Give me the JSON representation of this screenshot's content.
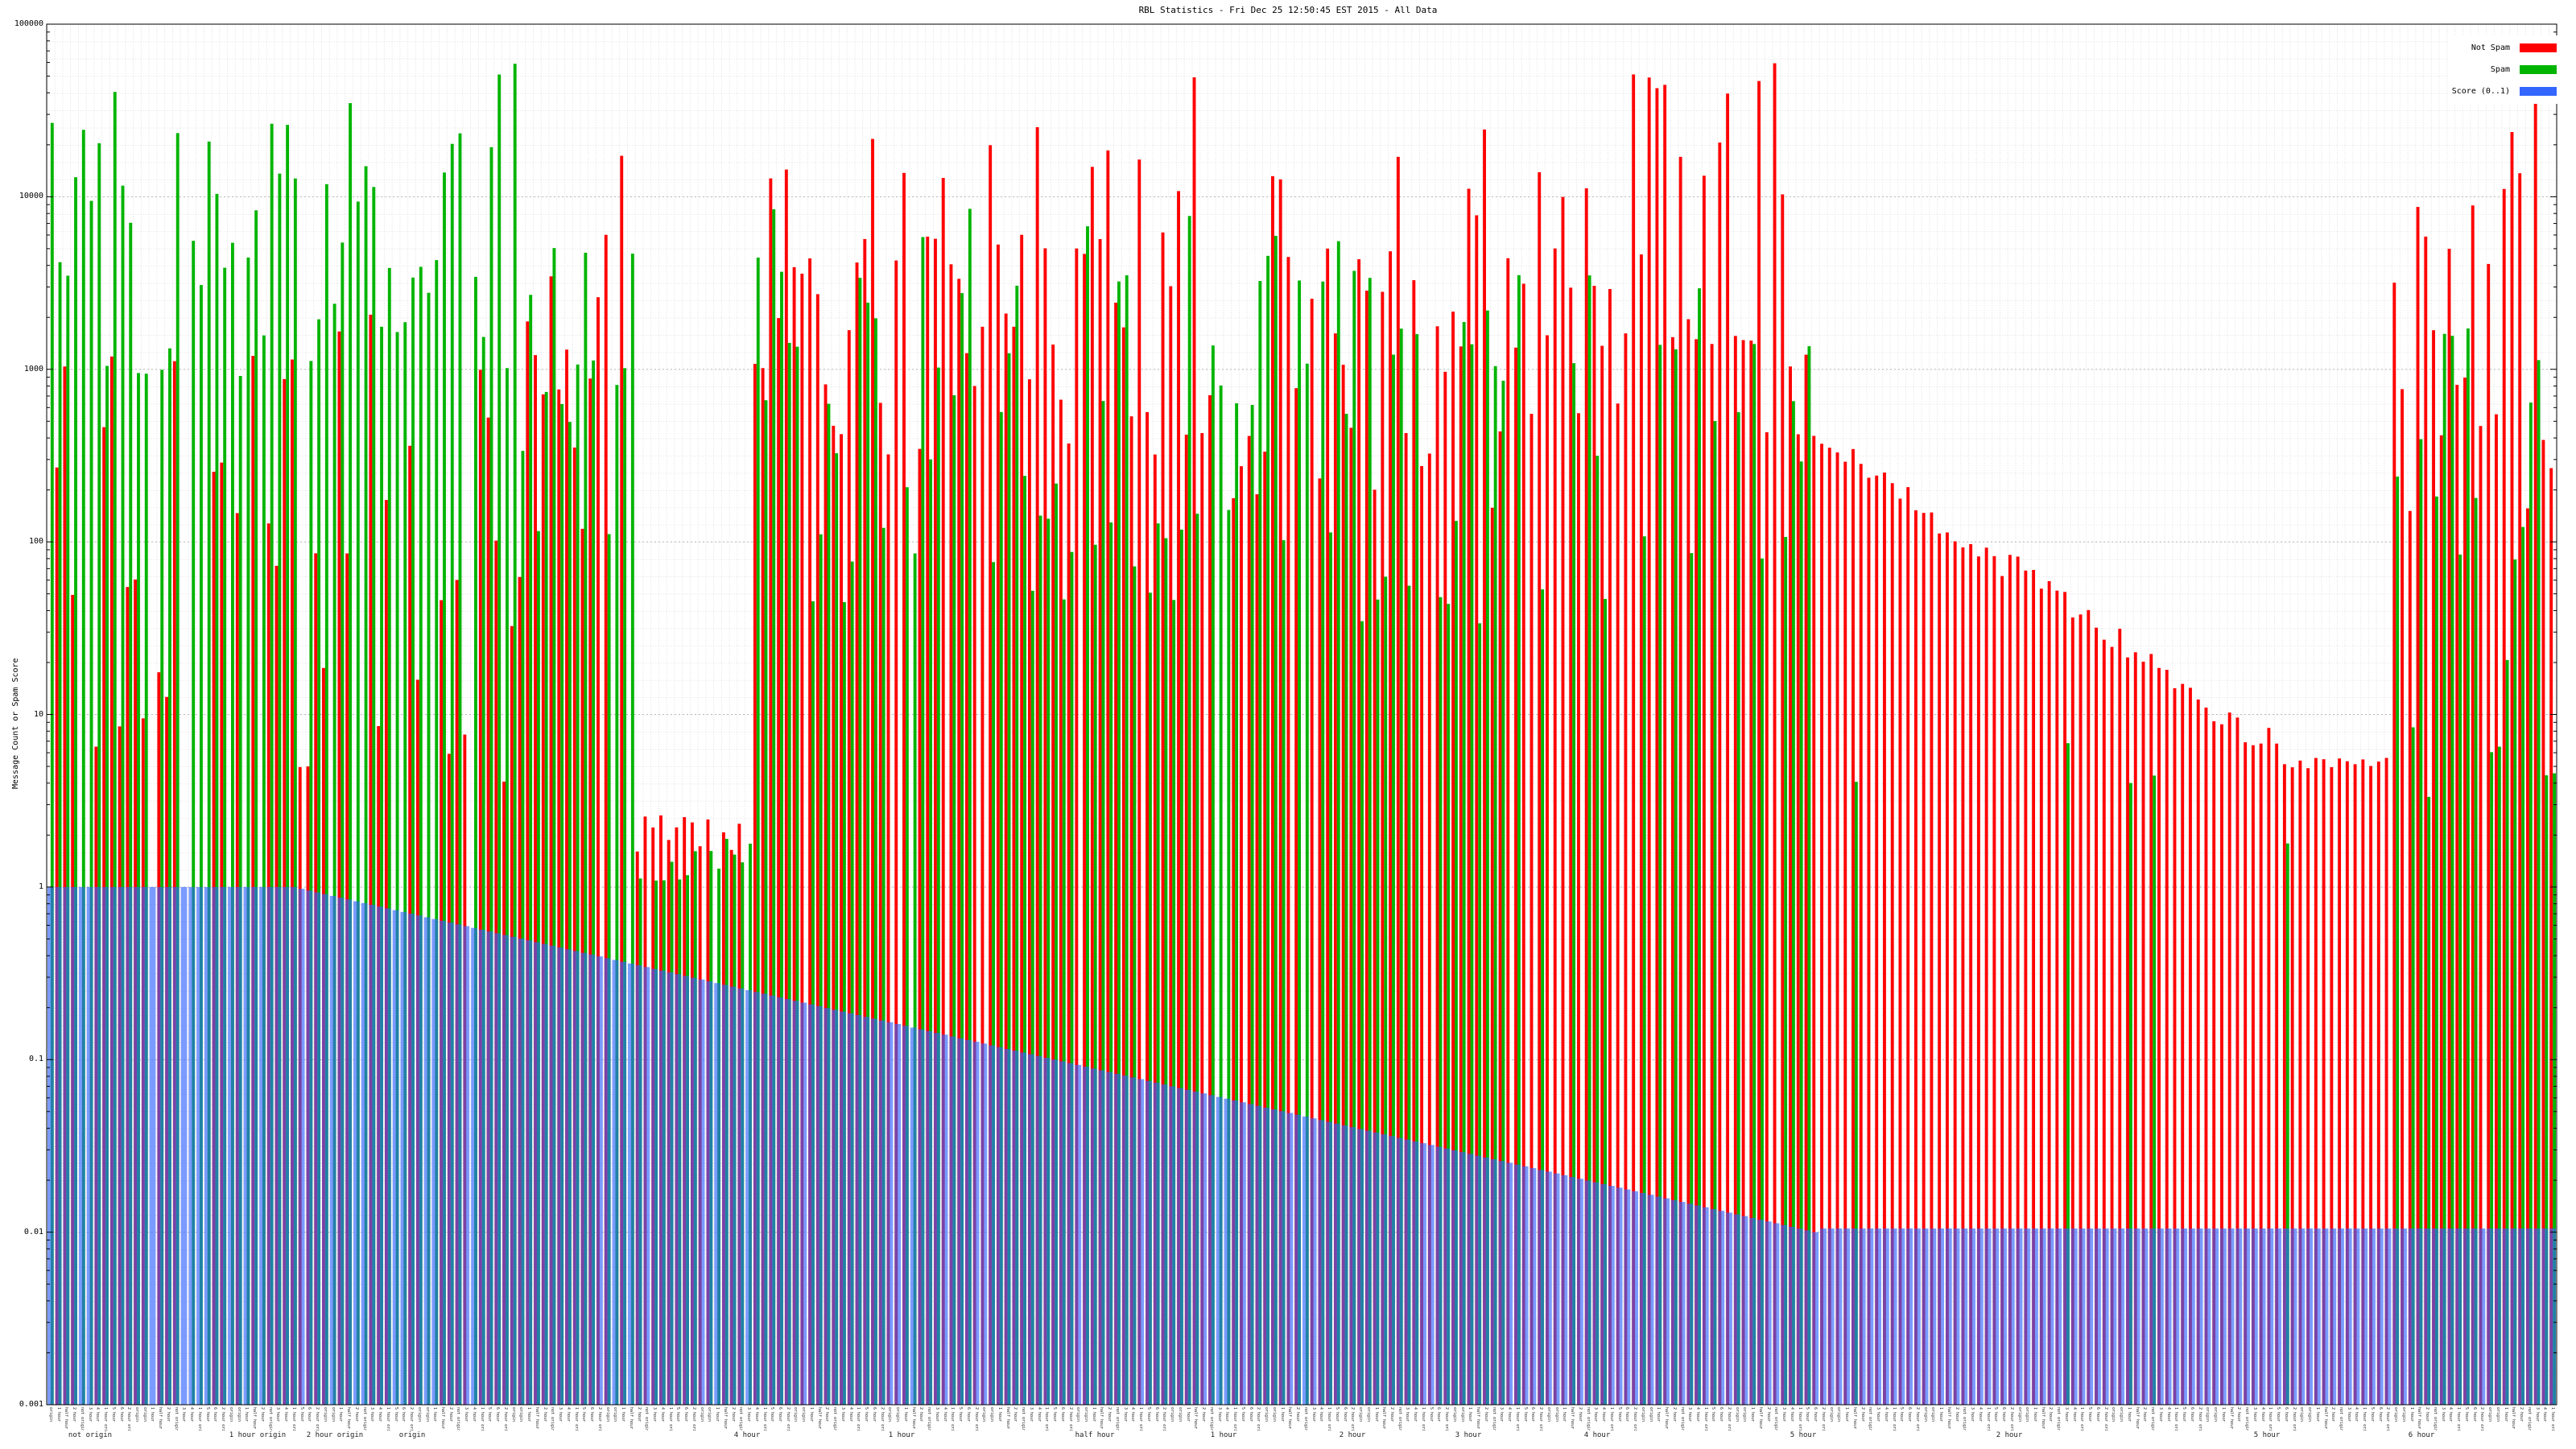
{
  "title": "RBL Statistics - Fri Dec 25 12:50:45 EST 2015 - All Data",
  "y_axis": {
    "label": "Message Count or Spam Score",
    "ticks": [
      "100000",
      "10000",
      "1000",
      "100",
      "10",
      "1",
      "0.1",
      "0.01",
      "0.001"
    ],
    "min": 0.001,
    "max": 100000,
    "scale": "log"
  },
  "x_axis": {
    "label_tokens": [
      "origin",
      "1 hour",
      "half hour",
      "2 hour",
      "not origin",
      "3 hour",
      "4 hour",
      "1 hour origin",
      "5 hour",
      "6 hour",
      "2 hour origin",
      "origin"
    ],
    "group_labels": [
      {
        "x": 0.035,
        "text": "not origin"
      },
      {
        "x": 0.1,
        "text": "1 hour origin"
      },
      {
        "x": 0.13,
        "text": "2 hour origin"
      },
      {
        "x": 0.16,
        "text": "origin"
      },
      {
        "x": 0.29,
        "text": "4 hour"
      },
      {
        "x": 0.35,
        "text": "1 hour"
      },
      {
        "x": 0.425,
        "text": "half hour"
      },
      {
        "x": 0.475,
        "text": "1 hour"
      },
      {
        "x": 0.525,
        "text": "2 hour"
      },
      {
        "x": 0.57,
        "text": "3 hour"
      },
      {
        "x": 0.62,
        "text": "4 hour"
      },
      {
        "x": 0.7,
        "text": "5 hour"
      },
      {
        "x": 0.78,
        "text": "2 hour"
      },
      {
        "x": 0.88,
        "text": "5 hour"
      },
      {
        "x": 0.94,
        "text": "6 hour"
      }
    ]
  },
  "legend": [
    {
      "label": "Not Spam",
      "color": "#ff0000"
    },
    {
      "label": "Spam",
      "color": "#00b400"
    },
    {
      "label": "Score (0..1)",
      "color": "#3366ff"
    }
  ],
  "chart_data": {
    "type": "bar",
    "scale": "log",
    "title": "RBL Statistics - Fri Dec 25 12:50:45 EST 2015 - All Data",
    "xlabel": "",
    "ylabel": "Message Count or Spam Score",
    "ylim": [
      0.001,
      100000
    ],
    "grid": true,
    "legend_position": "top-right",
    "n": 320,
    "ymax": 100000,
    "ymin": 0.001,
    "series": [
      {
        "name": "Not Spam",
        "color": "#ff0000",
        "segments": [
          {
            "n": 60,
            "p": 0.7,
            "lo": 4,
            "hi": 2500,
            "mode": "rand"
          },
          {
            "n": 15,
            "p": 0.9,
            "lo": 60,
            "hi": 18000,
            "mode": "rand"
          },
          {
            "n": 15,
            "p": 0.9,
            "lo": 1.6,
            "hi": 2.6,
            "mode": "rand"
          },
          {
            "n": 58,
            "p": 0.95,
            "lo": 300,
            "hi": 50000,
            "mode": "rand"
          },
          {
            "n": 38,
            "p": 0.95,
            "lo": 150,
            "hi": 25000,
            "mode": "rand"
          },
          {
            "n": 39,
            "p": 1.0,
            "lo": 400,
            "hi": 65000,
            "mode": "rand"
          },
          {
            "n": 61,
            "p": 1.0,
            "lo": 6,
            "hi": 420,
            "mode": "fall",
            "j": 0.25
          },
          {
            "n": 13,
            "p": 1.0,
            "lo": 4.5,
            "hi": 6,
            "mode": "rand"
          },
          {
            "n": 21,
            "p": 0.95,
            "lo": 150,
            "hi": 45000,
            "mode": "rand"
          }
        ]
      },
      {
        "name": "Spam",
        "color": "#00b400",
        "segments": [
          {
            "n": 60,
            "p": 0.95,
            "lo": 900,
            "hi": 60000,
            "mode": "rand"
          },
          {
            "n": 15,
            "p": 0.9,
            "lo": 80,
            "hi": 6000,
            "mode": "rand"
          },
          {
            "n": 15,
            "p": 0.75,
            "lo": 1,
            "hi": 2,
            "mode": "rand"
          },
          {
            "n": 58,
            "p": 0.9,
            "lo": 40,
            "hi": 9000,
            "mode": "rand"
          },
          {
            "n": 38,
            "p": 0.9,
            "lo": 30,
            "hi": 6000,
            "mode": "rand"
          },
          {
            "n": 39,
            "p": 0.65,
            "lo": 20,
            "hi": 4000,
            "mode": "rand"
          },
          {
            "n": 61,
            "p": 0.12,
            "lo": 1,
            "hi": 8,
            "mode": "rand"
          },
          {
            "n": 13,
            "p": 0.15,
            "lo": 1,
            "hi": 3,
            "mode": "rand"
          },
          {
            "n": 21,
            "p": 0.8,
            "lo": 2,
            "hi": 2500,
            "mode": "rand"
          }
        ]
      },
      {
        "name": "Score (0..1)",
        "color": "#3366ff",
        "opacity": 0.65,
        "segments": [
          {
            "n": 31,
            "p": 1.0,
            "lo": 1,
            "hi": 1,
            "mode": "flat"
          },
          {
            "n": 195,
            "p": 1.0,
            "lo": 0.01,
            "hi": 1,
            "mode": "fall"
          },
          {
            "n": 94,
            "p": 1.0,
            "lo": 0.0105,
            "hi": 0.0105,
            "mode": "flat"
          }
        ]
      }
    ]
  }
}
